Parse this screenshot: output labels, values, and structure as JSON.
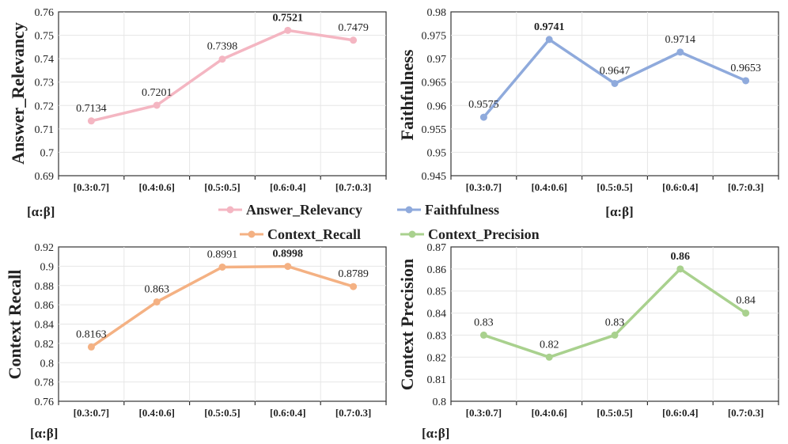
{
  "legend": {
    "items": [
      {
        "label": "Answer_Relevancy",
        "color": "#f4b6c2"
      },
      {
        "label": "Faithfulness",
        "color": "#8faadc"
      },
      {
        "label": "Context_Recall",
        "color": "#f4b183"
      },
      {
        "label": "Context_Precision",
        "color": "#a9d18e"
      }
    ]
  },
  "chart_data": [
    {
      "type": "line",
      "title": "",
      "series_name": "Answer_Relevancy",
      "ylabel": "Answer_Relevancy",
      "xlabel": "[α:β]",
      "color": "#f4b6c2",
      "ylim": [
        0.69,
        0.76
      ],
      "yticks": [
        0.69,
        0.7,
        0.71,
        0.72,
        0.73,
        0.74,
        0.75,
        0.76
      ],
      "ytick_labels": [
        "0.69",
        "0.7",
        "0.71",
        "0.72",
        "0.73",
        "0.74",
        "0.75",
        "0.76"
      ],
      "categories": [
        "[0.3:0.7]",
        "[0.4:0.6]",
        "[0.5:0.5]",
        "[0.6:0.4]",
        "[0.7:0.3]"
      ],
      "values": [
        0.7134,
        0.7201,
        0.7398,
        0.7521,
        0.7479
      ],
      "value_labels": [
        "0.7134",
        "0.7201",
        "0.7398",
        "0.7521",
        "0.7479"
      ],
      "best_index": 3
    },
    {
      "type": "line",
      "title": "",
      "series_name": "Faithfulness",
      "ylabel": "Faithfulness",
      "xlabel": "[α:β]",
      "color": "#8faadc",
      "ylim": [
        0.945,
        0.98
      ],
      "yticks": [
        0.945,
        0.95,
        0.955,
        0.96,
        0.965,
        0.97,
        0.975,
        0.98
      ],
      "ytick_labels": [
        "0.945",
        "0.95",
        "0.955",
        "0.96",
        "0.965",
        "0.97",
        "0.975",
        "0.98"
      ],
      "categories": [
        "[0.3:0.7]",
        "[0.4:0.6]",
        "[0.5:0.5]",
        "[0.6:0.4]",
        "[0.7:0.3]"
      ],
      "values": [
        0.9575,
        0.9741,
        0.9647,
        0.9714,
        0.9653
      ],
      "value_labels": [
        "0.9575",
        "0.9741",
        "0.9647",
        "0.9714",
        "0.9653"
      ],
      "best_index": 1
    },
    {
      "type": "line",
      "title": "",
      "series_name": "Context_Recall",
      "ylabel": "Context Recall",
      "xlabel": "[α:β]",
      "color": "#f4b183",
      "ylim": [
        0.76,
        0.92
      ],
      "yticks": [
        0.76,
        0.78,
        0.8,
        0.82,
        0.84,
        0.86,
        0.88,
        0.9,
        0.92
      ],
      "ytick_labels": [
        "0.76",
        "0.78",
        "0.8",
        "0.82",
        "0.84",
        "0.86",
        "0.88",
        "0.9",
        "0.92"
      ],
      "categories": [
        "[0.3:0.7]",
        "[0.4:0.6]",
        "[0.5:0.5]",
        "[0.6:0.4]",
        "[0.7:0.3]"
      ],
      "values": [
        0.8163,
        0.863,
        0.8991,
        0.8998,
        0.8789
      ],
      "value_labels": [
        "0.8163",
        "0.863",
        "0.8991",
        "0.8998",
        "0.8789"
      ],
      "best_index": 3
    },
    {
      "type": "line",
      "title": "",
      "series_name": "Context_Precision",
      "ylabel": "Context Precision",
      "xlabel": "[α:β]",
      "color": "#a9d18e",
      "ylim": [
        0.8,
        0.87
      ],
      "yticks": [
        0.8,
        0.81,
        0.82,
        0.83,
        0.84,
        0.85,
        0.86,
        0.87
      ],
      "ytick_labels": [
        "0.8",
        "0.81",
        "0.82",
        "0.83",
        "0.84",
        "0.85",
        "0.86",
        "0.87"
      ],
      "categories": [
        "[0.3:0.7]",
        "[0.4:0.6]",
        "[0.5:0.5]",
        "[0.6:0.4]",
        "[0.7:0.3]"
      ],
      "values": [
        0.83,
        0.82,
        0.83,
        0.86,
        0.84
      ],
      "value_labels": [
        "0.83",
        "0.82",
        "0.83",
        "0.86",
        "0.84"
      ],
      "best_index": 3
    }
  ]
}
